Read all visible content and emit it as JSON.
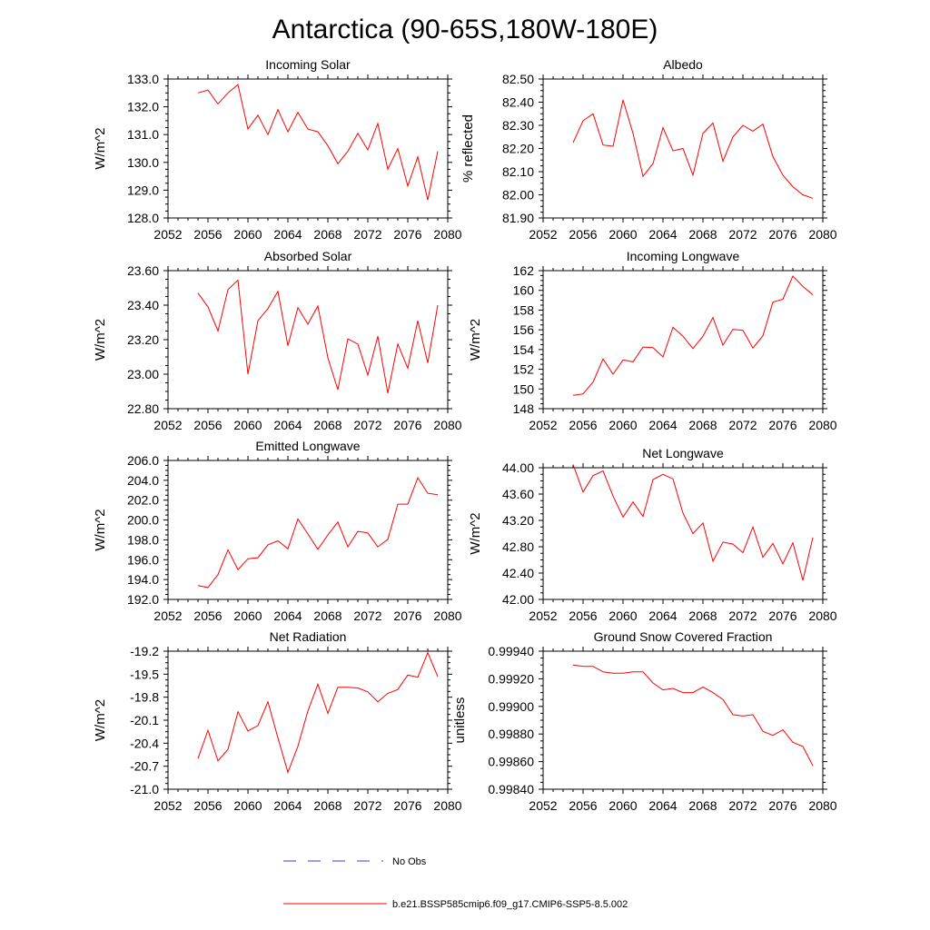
{
  "title": "Antarctica (90-65S,180W-180E)",
  "legend": [
    {
      "label": "No Obs",
      "color": "#3b3bd1",
      "style": "dashed"
    },
    {
      "label": "b.e21.BSSP585cmip6.f09_g17.CMIP6-SSP5-8.5.002",
      "color": "#ff0000",
      "style": "solid"
    }
  ],
  "chart_data": [
    {
      "type": "line",
      "title": "Incoming Solar",
      "ylabel": "W/m^2",
      "xlim": [
        2052,
        2080
      ],
      "ylim": [
        128.0,
        133.0
      ],
      "xticks": [
        "2052",
        "2056",
        "2060",
        "2064",
        "2068",
        "2072",
        "2076",
        "2080"
      ],
      "yticks": [
        "128.0",
        "129.0",
        "130.0",
        "131.0",
        "132.0",
        "133.0"
      ],
      "x": [
        2055,
        2056,
        2057,
        2058,
        2059,
        2060,
        2061,
        2062,
        2063,
        2064,
        2065,
        2066,
        2067,
        2068,
        2069,
        2070,
        2071,
        2072,
        2073,
        2074,
        2075,
        2076,
        2077,
        2078,
        2079
      ],
      "series": [
        {
          "color": "#ff0000",
          "values": [
            132.5,
            132.6,
            132.1,
            132.5,
            132.8,
            131.2,
            131.7,
            131.0,
            131.9,
            131.1,
            131.8,
            131.2,
            131.1,
            130.6,
            129.95,
            130.4,
            131.05,
            130.45,
            131.4,
            129.75,
            130.5,
            129.15,
            130.2,
            128.65,
            130.4
          ]
        }
      ]
    },
    {
      "type": "line",
      "title": "Albedo",
      "ylabel": "% reflected",
      "xlim": [
        2052,
        2080
      ],
      "ylim": [
        81.9,
        82.5
      ],
      "xticks": [
        "2052",
        "2056",
        "2060",
        "2064",
        "2068",
        "2072",
        "2076",
        "2080"
      ],
      "yticks": [
        "81.90",
        "82.00",
        "82.10",
        "82.20",
        "82.30",
        "82.40",
        "82.50"
      ],
      "x": [
        2055,
        2056,
        2057,
        2058,
        2059,
        2060,
        2061,
        2062,
        2063,
        2064,
        2065,
        2066,
        2067,
        2068,
        2069,
        2070,
        2071,
        2072,
        2073,
        2074,
        2075,
        2076,
        2077,
        2078,
        2079
      ],
      "series": [
        {
          "color": "#ff0000",
          "values": [
            82.225,
            82.32,
            82.35,
            82.215,
            82.21,
            82.41,
            82.265,
            82.08,
            82.135,
            82.29,
            82.19,
            82.2,
            82.085,
            82.265,
            82.31,
            82.145,
            82.25,
            82.3,
            82.275,
            82.305,
            82.165,
            82.085,
            82.035,
            82.0,
            81.985
          ]
        }
      ]
    },
    {
      "type": "line",
      "title": "Absorbed Solar",
      "ylabel": "W/m^2",
      "xlim": [
        2052,
        2080
      ],
      "ylim": [
        22.8,
        23.6
      ],
      "xticks": [
        "2052",
        "2056",
        "2060",
        "2064",
        "2068",
        "2072",
        "2076",
        "2080"
      ],
      "yticks": [
        "22.80",
        "23.00",
        "23.20",
        "23.40",
        "23.60"
      ],
      "x": [
        2055,
        2056,
        2057,
        2058,
        2059,
        2060,
        2061,
        2062,
        2063,
        2064,
        2065,
        2066,
        2067,
        2068,
        2069,
        2070,
        2071,
        2072,
        2073,
        2074,
        2075,
        2076,
        2077,
        2078,
        2079
      ],
      "series": [
        {
          "color": "#ff0000",
          "values": [
            23.47,
            23.39,
            23.25,
            23.49,
            23.545,
            23.0,
            23.31,
            23.38,
            23.48,
            23.165,
            23.385,
            23.29,
            23.395,
            23.095,
            22.91,
            23.205,
            23.175,
            22.995,
            23.22,
            22.89,
            23.175,
            23.035,
            23.31,
            23.065,
            23.4
          ]
        }
      ]
    },
    {
      "type": "line",
      "title": "Incoming Longwave",
      "ylabel": "W/m^2",
      "xlim": [
        2052,
        2080
      ],
      "ylim": [
        148,
        162
      ],
      "xticks": [
        "2052",
        "2056",
        "2060",
        "2064",
        "2068",
        "2072",
        "2076",
        "2080"
      ],
      "yticks": [
        "148",
        "150",
        "152",
        "154",
        "156",
        "158",
        "160",
        "162"
      ],
      "x": [
        2055,
        2056,
        2057,
        2058,
        2059,
        2060,
        2061,
        2062,
        2063,
        2064,
        2065,
        2066,
        2067,
        2068,
        2069,
        2070,
        2071,
        2072,
        2073,
        2074,
        2075,
        2076,
        2077,
        2078,
        2079
      ],
      "series": [
        {
          "color": "#ff0000",
          "values": [
            149.35,
            149.5,
            150.7,
            153.05,
            151.5,
            152.95,
            152.75,
            154.25,
            154.2,
            153.25,
            156.25,
            155.35,
            154.1,
            155.35,
            157.25,
            154.45,
            156.05,
            155.95,
            154.15,
            155.4,
            158.8,
            159.1,
            161.45,
            160.4,
            159.55
          ]
        }
      ]
    },
    {
      "type": "line",
      "title": "Emitted Longwave",
      "ylabel": "W/m^2",
      "xlim": [
        2052,
        2080
      ],
      "ylim": [
        192.0,
        206.0
      ],
      "xticks": [
        "2052",
        "2056",
        "2060",
        "2064",
        "2068",
        "2072",
        "2076",
        "2080"
      ],
      "yticks": [
        "192.0",
        "194.0",
        "196.0",
        "198.0",
        "200.0",
        "202.0",
        "204.0",
        "206.0"
      ],
      "x": [
        2055,
        2056,
        2057,
        2058,
        2059,
        2060,
        2061,
        2062,
        2063,
        2064,
        2065,
        2066,
        2067,
        2068,
        2069,
        2070,
        2071,
        2072,
        2073,
        2074,
        2075,
        2076,
        2077,
        2078,
        2079
      ],
      "series": [
        {
          "color": "#ff0000",
          "values": [
            193.4,
            193.2,
            194.5,
            197.0,
            195.0,
            196.1,
            196.2,
            197.5,
            197.9,
            197.1,
            200.1,
            198.6,
            197.05,
            198.5,
            199.8,
            197.3,
            198.85,
            198.7,
            197.3,
            198.05,
            201.6,
            201.6,
            204.25,
            202.7,
            202.55
          ]
        }
      ]
    },
    {
      "type": "line",
      "title": "Net Longwave",
      "ylabel": "W/m^2",
      "xlim": [
        2052,
        2080
      ],
      "ylim": [
        42.0,
        44.0
      ],
      "xticks": [
        "2052",
        "2056",
        "2060",
        "2064",
        "2068",
        "2072",
        "2076",
        "2080"
      ],
      "yticks": [
        "42.00",
        "42.40",
        "42.80",
        "43.20",
        "43.60",
        "44.00"
      ],
      "x": [
        2055,
        2056,
        2057,
        2058,
        2059,
        2060,
        2061,
        2062,
        2063,
        2064,
        2065,
        2066,
        2067,
        2068,
        2069,
        2070,
        2071,
        2072,
        2073,
        2074,
        2075,
        2076,
        2077,
        2078,
        2079
      ],
      "series": [
        {
          "color": "#ff0000",
          "values": [
            44.05,
            43.63,
            43.88,
            43.95,
            43.57,
            43.25,
            43.48,
            43.26,
            43.82,
            43.9,
            43.83,
            43.31,
            43.0,
            43.16,
            42.58,
            42.87,
            42.84,
            42.71,
            43.1,
            42.64,
            42.85,
            42.54,
            42.86,
            42.29,
            42.94
          ]
        }
      ]
    },
    {
      "type": "line",
      "title": "Net Radiation",
      "ylabel": "W/m^2",
      "xlim": [
        2052,
        2080
      ],
      "ylim": [
        -21.0,
        -19.2
      ],
      "xticks": [
        "2052",
        "2056",
        "2060",
        "2064",
        "2068",
        "2072",
        "2076",
        "2080"
      ],
      "yticks": [
        "-21.0",
        "-20.7",
        "-20.4",
        "-20.1",
        "-19.8",
        "-19.5",
        "-19.2"
      ],
      "x": [
        2055,
        2056,
        2057,
        2058,
        2059,
        2060,
        2061,
        2062,
        2063,
        2064,
        2065,
        2066,
        2067,
        2068,
        2069,
        2070,
        2071,
        2072,
        2073,
        2074,
        2075,
        2076,
        2077,
        2078,
        2079
      ],
      "series": [
        {
          "color": "#ff0000",
          "values": [
            -20.6,
            -20.23,
            -20.63,
            -20.48,
            -19.99,
            -20.24,
            -20.17,
            -19.86,
            -20.33,
            -20.78,
            -20.44,
            -19.98,
            -19.63,
            -20.01,
            -19.67,
            -19.67,
            -19.68,
            -19.73,
            -19.86,
            -19.75,
            -19.7,
            -19.51,
            -19.54,
            -19.22,
            -19.53
          ]
        }
      ]
    },
    {
      "type": "line",
      "title": "Ground Snow Covered Fraction",
      "ylabel": "unitless",
      "xlim": [
        2052,
        2080
      ],
      "ylim": [
        0.9984,
        0.9994
      ],
      "xticks": [
        "2052",
        "2056",
        "2060",
        "2064",
        "2068",
        "2072",
        "2076",
        "2080"
      ],
      "yticks": [
        "0.99840",
        "0.99860",
        "0.99880",
        "0.99900",
        "0.99920",
        "0.99940"
      ],
      "x": [
        2055,
        2056,
        2057,
        2058,
        2059,
        2060,
        2061,
        2062,
        2063,
        2064,
        2065,
        2066,
        2067,
        2068,
        2069,
        2070,
        2071,
        2072,
        2073,
        2074,
        2075,
        2076,
        2077,
        2078,
        2079
      ],
      "series": [
        {
          "color": "#ff0000",
          "values": [
            0.9993,
            0.99929,
            0.99929,
            0.99925,
            0.99924,
            0.99924,
            0.99925,
            0.99925,
            0.99917,
            0.99912,
            0.99913,
            0.9991,
            0.9991,
            0.99914,
            0.9991,
            0.99905,
            0.99894,
            0.99893,
            0.99894,
            0.99882,
            0.99879,
            0.99883,
            0.99874,
            0.99871,
            0.99857
          ]
        }
      ]
    }
  ]
}
